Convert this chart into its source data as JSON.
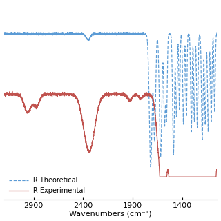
{
  "x_min": 3200,
  "x_max": 1050,
  "xticks": [
    2900,
    2400,
    1900,
    1400
  ],
  "xlabel": "Wavenumbers (cm⁻¹)",
  "background_color": "#ffffff",
  "theoretical_color": "#5b9bd5",
  "experimental_color": "#c0534f",
  "legend_labels": [
    "IR Theoretical",
    "IR Experimental"
  ],
  "theo_baseline": 95,
  "exp_baseline": 55
}
